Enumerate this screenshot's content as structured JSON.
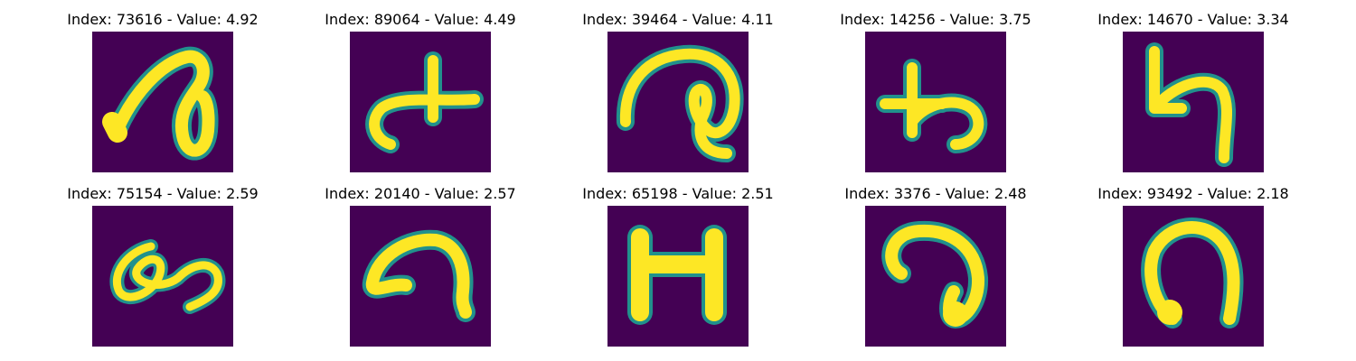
{
  "colors": {
    "background": "#440154",
    "edge": "#21918c",
    "stroke": "#fde725"
  },
  "panels": [
    {
      "title": "Index: 73616 - Value: 4.92",
      "glyph": "glyph-a-loop"
    },
    {
      "title": "Index: 89064 - Value: 4.49",
      "glyph": "glyph-cross-hook"
    },
    {
      "title": "Index: 39464 - Value: 4.11",
      "glyph": "glyph-curl"
    },
    {
      "title": "Index: 14256 - Value: 3.75",
      "glyph": "glyph-cross-curve"
    },
    {
      "title": "Index: 14670 - Value: 3.34",
      "glyph": "glyph-h-hook"
    },
    {
      "title": "Index: 75154 - Value: 2.59",
      "glyph": "glyph-loops"
    },
    {
      "title": "Index: 20140 - Value: 2.57",
      "glyph": "glyph-arch-hook"
    },
    {
      "title": "Index: 65198 - Value: 2.51",
      "glyph": "glyph-h-block"
    },
    {
      "title": "Index: 3376 - Value: 2.48",
      "glyph": "glyph-q-curl"
    },
    {
      "title": "Index: 93492 - Value: 2.18",
      "glyph": "glyph-horseshoe"
    }
  ]
}
